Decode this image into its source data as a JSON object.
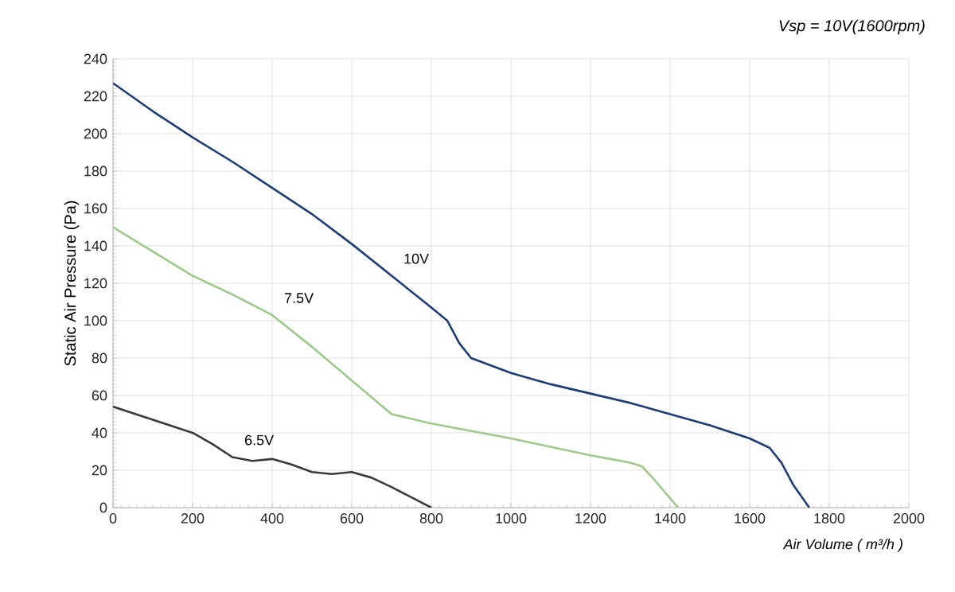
{
  "chart_data": {
    "type": "line",
    "subtitle": "Vsp = 10V(1600rpm)",
    "xlabel": "Air Volume ( m³/h )",
    "ylabel": "Static Air Pressure  (Pa)",
    "xlim": [
      0,
      2000
    ],
    "xticks": [
      0,
      200,
      400,
      600,
      800,
      1000,
      1200,
      1400,
      1600,
      1800,
      2000
    ],
    "ylim": [
      0,
      240
    ],
    "yticks": [
      0,
      20,
      40,
      60,
      80,
      100,
      120,
      140,
      160,
      180,
      200,
      220,
      240
    ],
    "grid": true,
    "legend": false,
    "marker": "none",
    "line_style": "solid",
    "series": [
      {
        "name": "10V",
        "color": "#1c3d7a",
        "x": [
          0,
          100,
          200,
          300,
          400,
          500,
          600,
          700,
          800,
          840,
          870,
          900,
          1000,
          1100,
          1200,
          1300,
          1400,
          1500,
          1600,
          1650,
          1680,
          1710,
          1750
        ],
        "values": [
          227,
          212,
          198,
          185,
          171,
          157,
          141,
          124,
          107,
          100,
          88,
          80,
          72,
          66,
          61,
          56,
          50,
          44,
          37,
          32,
          24,
          12,
          0
        ]
      },
      {
        "name": "7.5V",
        "color": "#9dc98a",
        "x": [
          0,
          100,
          200,
          300,
          400,
          500,
          600,
          700,
          800,
          1000,
          1200,
          1300,
          1330,
          1360,
          1420
        ],
        "values": [
          150,
          137,
          124,
          114,
          103,
          86,
          68,
          50,
          45,
          37,
          28,
          24,
          22,
          15,
          0
        ]
      },
      {
        "name": "6.5V",
        "color": "#3a3a3a",
        "x": [
          0,
          100,
          200,
          250,
          300,
          350,
          400,
          450,
          500,
          550,
          600,
          650,
          700,
          800
        ],
        "values": [
          54,
          47,
          40,
          34,
          27,
          25,
          26,
          23,
          19,
          18,
          19,
          16,
          11,
          0
        ]
      }
    ]
  }
}
